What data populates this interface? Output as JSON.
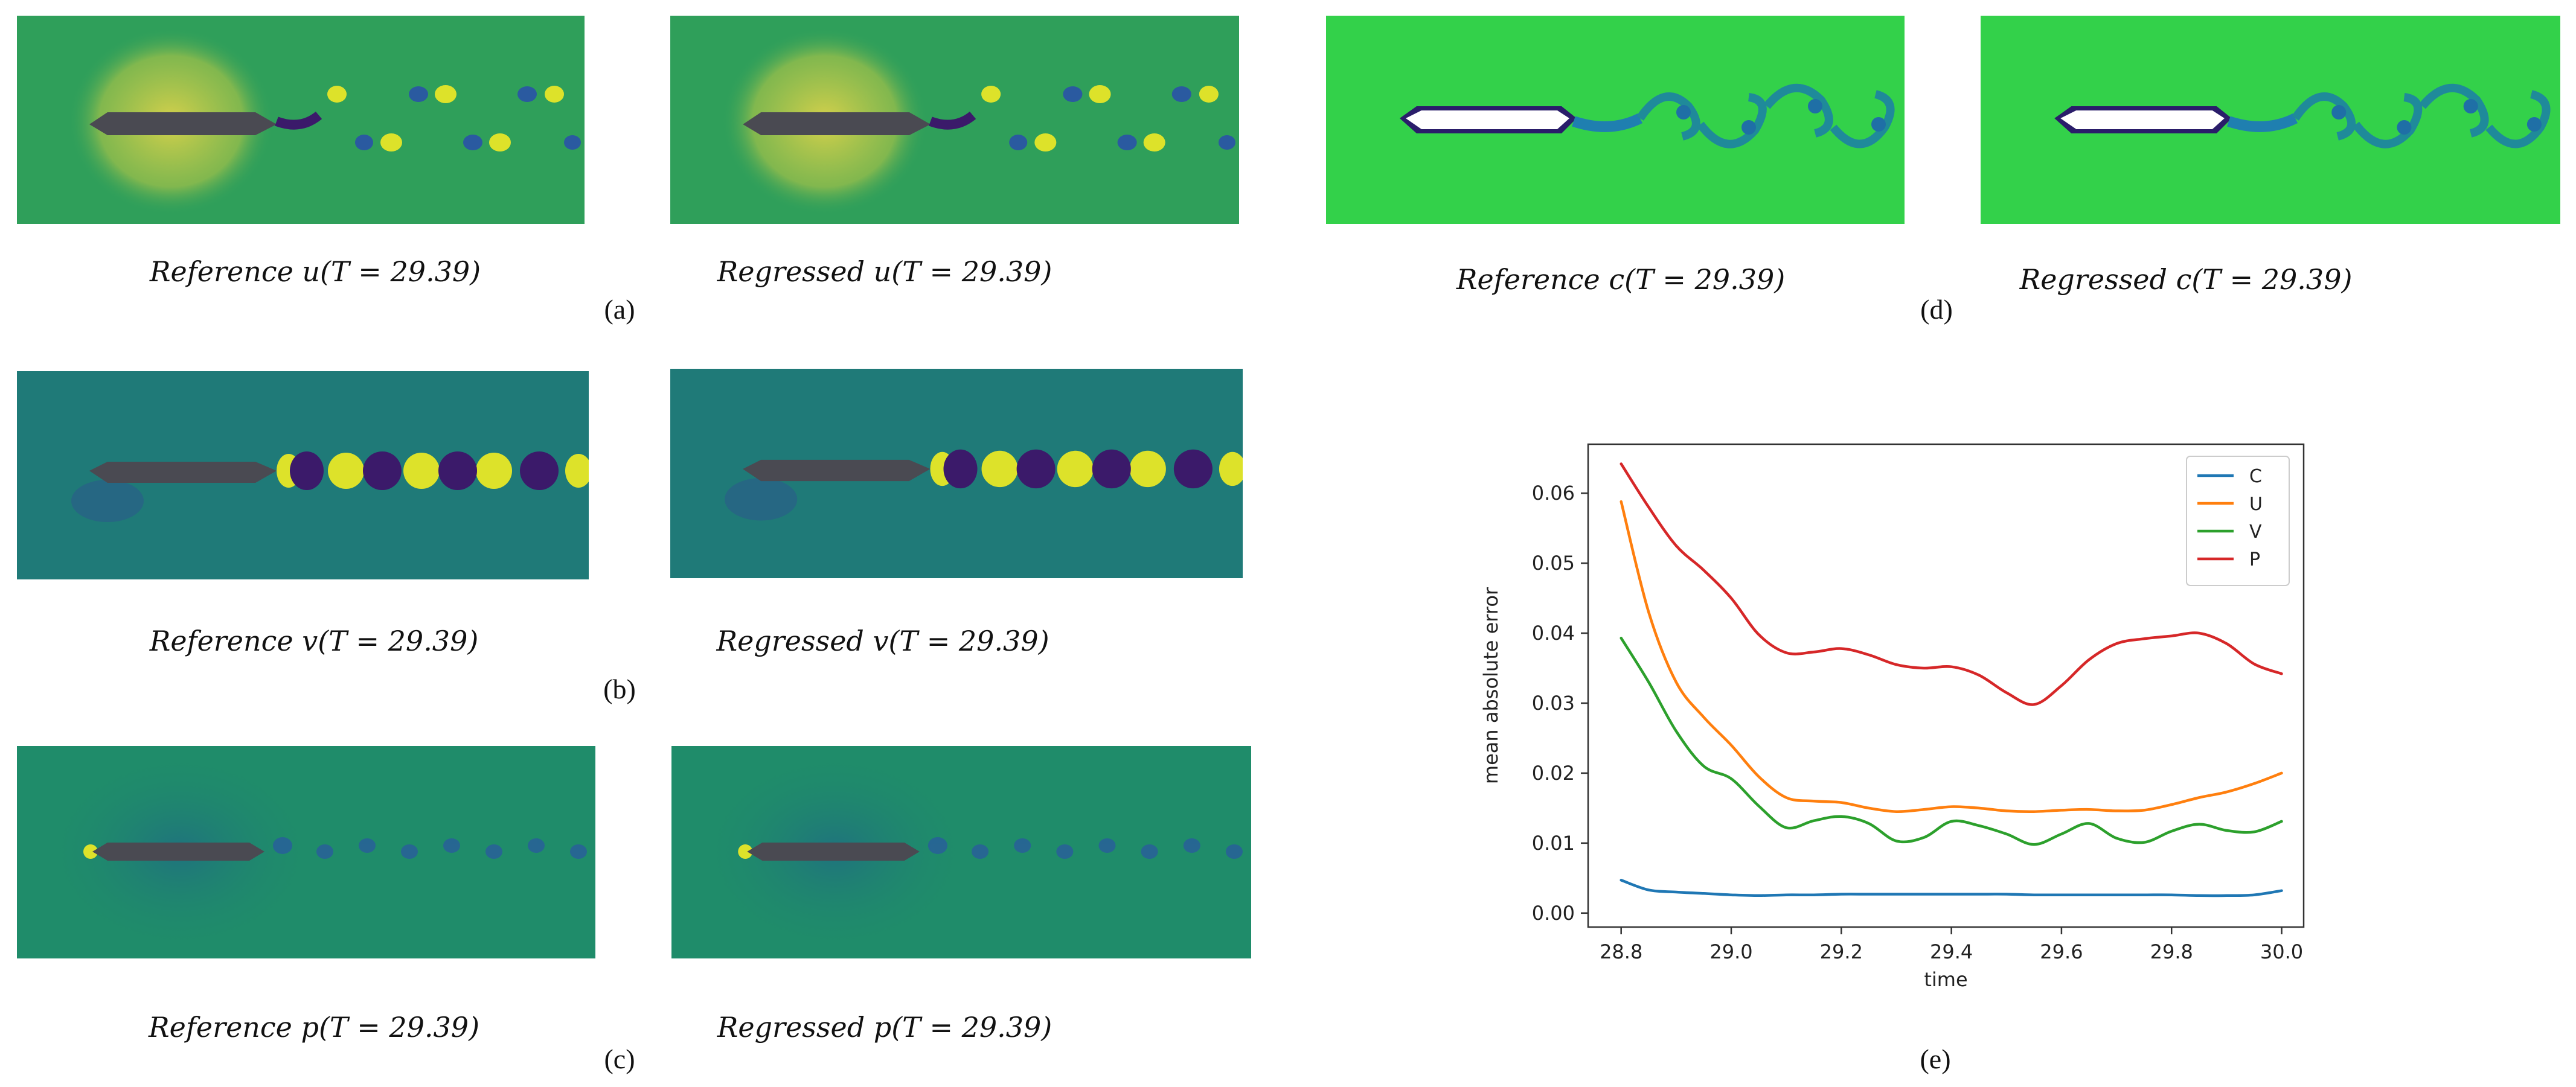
{
  "figure": {
    "fields": [
      {
        "id": "a",
        "label": "(a)",
        "ref_caption": "Reference u(T = 29.39)",
        "reg_caption": "Regressed u(T = 29.39)"
      },
      {
        "id": "b",
        "label": "(b)",
        "ref_caption": "Reference v(T = 29.39)",
        "reg_caption": "Regressed v(T = 29.39)"
      },
      {
        "id": "c",
        "label": "(c)",
        "ref_caption": "Reference p(T = 29.39)",
        "reg_caption": "Regressed p(T = 29.39)"
      },
      {
        "id": "d",
        "label": "(d)",
        "ref_caption": "Reference c(T = 29.39)",
        "reg_caption": "Regressed c(T = 29.39)"
      }
    ],
    "chart_label": "(e)"
  },
  "colors": {
    "u_bg": "#2f9f5a",
    "v_bg": "#1f7a78",
    "p_bg": "#1f8c6a",
    "c_bg": "#33d14a",
    "body": "#4a4a52",
    "c_body": "#ffffff",
    "yellow": "#dde22a",
    "purple": "#3b1a6a",
    "blue": "#2a5aa0"
  },
  "chart_data": {
    "type": "line",
    "xlabel": "time",
    "ylabel": "mean absolute error",
    "xlim": [
      28.74,
      30.04
    ],
    "ylim": [
      -0.002,
      0.067
    ],
    "xticks": [
      "28.8",
      "29.0",
      "29.2",
      "29.4",
      "29.6",
      "29.8",
      "30.0"
    ],
    "yticks": [
      "0.00",
      "0.01",
      "0.02",
      "0.03",
      "0.04",
      "0.05",
      "0.06"
    ],
    "legend_position": "top-right",
    "x": [
      28.8,
      28.85,
      28.9,
      28.95,
      29.0,
      29.05,
      29.1,
      29.15,
      29.2,
      29.25,
      29.3,
      29.35,
      29.4,
      29.45,
      29.5,
      29.55,
      29.6,
      29.65,
      29.7,
      29.75,
      29.8,
      29.85,
      29.9,
      29.95,
      30.0
    ],
    "series": [
      {
        "name": "C",
        "color": "#1f77b4",
        "values": [
          0.0047,
          0.0033,
          0.003,
          0.0028,
          0.0026,
          0.0025,
          0.0026,
          0.0026,
          0.0027,
          0.0027,
          0.0027,
          0.0027,
          0.0027,
          0.0027,
          0.0027,
          0.0026,
          0.0026,
          0.0026,
          0.0026,
          0.0026,
          0.0026,
          0.0025,
          0.0025,
          0.0026,
          0.0032
        ]
      },
      {
        "name": "U",
        "color": "#ff7f0e",
        "values": [
          0.0588,
          0.043,
          0.033,
          0.028,
          0.024,
          0.0195,
          0.0165,
          0.016,
          0.0158,
          0.015,
          0.0145,
          0.0148,
          0.0152,
          0.015,
          0.0146,
          0.0145,
          0.0147,
          0.0148,
          0.0146,
          0.0147,
          0.0155,
          0.0165,
          0.0173,
          0.0185,
          0.02
        ]
      },
      {
        "name": "V",
        "color": "#2ca02c",
        "values": [
          0.0393,
          0.033,
          0.026,
          0.021,
          0.0192,
          0.0153,
          0.0122,
          0.0132,
          0.0138,
          0.0128,
          0.0103,
          0.0108,
          0.0131,
          0.0125,
          0.0113,
          0.0098,
          0.0113,
          0.0128,
          0.0107,
          0.0101,
          0.0117,
          0.0127,
          0.0118,
          0.0116,
          0.0131
        ]
      },
      {
        "name": "P",
        "color": "#d62728",
        "values": [
          0.0642,
          0.058,
          0.0525,
          0.049,
          0.045,
          0.0398,
          0.0372,
          0.0373,
          0.0378,
          0.0369,
          0.0355,
          0.035,
          0.0352,
          0.034,
          0.0315,
          0.0298,
          0.0325,
          0.0362,
          0.0385,
          0.0392,
          0.0396,
          0.04,
          0.0385,
          0.0356,
          0.0342
        ]
      }
    ]
  }
}
